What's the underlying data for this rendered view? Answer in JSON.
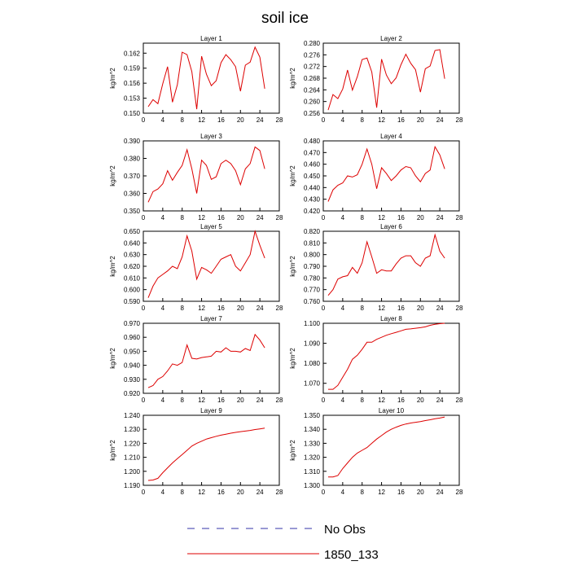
{
  "title": "soil ice",
  "chart_data": [
    {
      "type": "line",
      "title": "Layer 1",
      "ylabel": "kg/m^2",
      "xlim": [
        0,
        28
      ],
      "ylim": [
        0.15,
        0.164
      ],
      "xticks": [
        0,
        4,
        8,
        12,
        16,
        20,
        24,
        28
      ],
      "yticks": [
        "0.150",
        "0.153",
        "0.156",
        "0.159",
        "0.162"
      ],
      "series": [
        {
          "name": "1850_133",
          "x": [
            1,
            2,
            3,
            4,
            5,
            6,
            7,
            8,
            9,
            10,
            11,
            12,
            13,
            14,
            15,
            16,
            17,
            18,
            19,
            20,
            21,
            22,
            23,
            24,
            25
          ],
          "values": [
            0.1513,
            0.1527,
            0.1519,
            0.1559,
            0.1593,
            0.1522,
            0.1557,
            0.1622,
            0.1617,
            0.1583,
            0.1508,
            0.1614,
            0.1578,
            0.1555,
            0.1565,
            0.1601,
            0.1617,
            0.1607,
            0.1593,
            0.1544,
            0.1596,
            0.1602,
            0.1632,
            0.1612,
            0.1549
          ]
        }
      ]
    },
    {
      "type": "line",
      "title": "Layer 2",
      "ylabel": "kg/m^2",
      "xlim": [
        0,
        28
      ],
      "ylim": [
        0.256,
        0.28
      ],
      "xticks": [
        0,
        4,
        8,
        12,
        16,
        20,
        24,
        28
      ],
      "yticks": [
        "0.256",
        "0.260",
        "0.264",
        "0.268",
        "0.272",
        "0.276",
        "0.280"
      ],
      "series": [
        {
          "name": "1850_133",
          "x": [
            1,
            2,
            3,
            4,
            5,
            6,
            7,
            8,
            9,
            10,
            11,
            12,
            13,
            14,
            15,
            16,
            17,
            18,
            19,
            20,
            21,
            22,
            23,
            24,
            25
          ],
          "values": [
            0.2571,
            0.2624,
            0.261,
            0.2643,
            0.2708,
            0.2639,
            0.2685,
            0.2744,
            0.2749,
            0.2701,
            0.2579,
            0.2745,
            0.2691,
            0.2661,
            0.2681,
            0.2726,
            0.2762,
            0.2731,
            0.2709,
            0.2632,
            0.2712,
            0.2722,
            0.2775,
            0.2778,
            0.2678
          ]
        }
      ]
    },
    {
      "type": "line",
      "title": "Layer 3",
      "ylabel": "kg/m^2",
      "xlim": [
        0,
        28
      ],
      "ylim": [
        0.35,
        0.39
      ],
      "xticks": [
        0,
        4,
        8,
        12,
        16,
        20,
        24,
        28
      ],
      "yticks": [
        "0.350",
        "0.360",
        "0.370",
        "0.380",
        "0.390"
      ],
      "series": [
        {
          "name": "1850_133",
          "x": [
            1,
            2,
            3,
            4,
            5,
            6,
            7,
            8,
            9,
            10,
            11,
            12,
            13,
            14,
            15,
            16,
            17,
            18,
            19,
            20,
            21,
            22,
            23,
            24,
            25
          ],
          "values": [
            0.355,
            0.361,
            0.3625,
            0.3655,
            0.373,
            0.3675,
            0.372,
            0.376,
            0.385,
            0.374,
            0.36,
            0.379,
            0.376,
            0.368,
            0.3695,
            0.377,
            0.379,
            0.377,
            0.373,
            0.365,
            0.374,
            0.377,
            0.3865,
            0.3845,
            0.374
          ]
        }
      ]
    },
    {
      "type": "line",
      "title": "Layer 4",
      "ylabel": "kg/m^2",
      "xlim": [
        0,
        28
      ],
      "ylim": [
        0.42,
        0.48
      ],
      "xticks": [
        0,
        4,
        8,
        12,
        16,
        20,
        24,
        28
      ],
      "yticks": [
        "0.420",
        "0.430",
        "0.440",
        "0.450",
        "0.460",
        "0.470",
        "0.480"
      ],
      "series": [
        {
          "name": "1850_133",
          "x": [
            1,
            2,
            3,
            4,
            5,
            6,
            7,
            8,
            9,
            10,
            11,
            12,
            13,
            14,
            15,
            16,
            17,
            18,
            19,
            20,
            21,
            22,
            23,
            24,
            25
          ],
          "values": [
            0.428,
            0.438,
            0.442,
            0.444,
            0.45,
            0.449,
            0.451,
            0.46,
            0.473,
            0.46,
            0.439,
            0.457,
            0.452,
            0.446,
            0.45,
            0.455,
            0.458,
            0.457,
            0.45,
            0.445,
            0.452,
            0.455,
            0.475,
            0.468,
            0.456
          ]
        }
      ]
    },
    {
      "type": "line",
      "title": "Layer 5",
      "ylabel": "kg/m^2",
      "xlim": [
        0,
        28
      ],
      "ylim": [
        0.59,
        0.65
      ],
      "xticks": [
        0,
        4,
        8,
        12,
        16,
        20,
        24,
        28
      ],
      "yticks": [
        "0.590",
        "0.600",
        "0.610",
        "0.620",
        "0.630",
        "0.640",
        "0.650"
      ],
      "series": [
        {
          "name": "1850_133",
          "x": [
            1,
            2,
            3,
            4,
            5,
            6,
            7,
            8,
            9,
            10,
            11,
            12,
            13,
            14,
            15,
            16,
            17,
            18,
            19,
            20,
            21,
            22,
            23,
            24,
            25
          ],
          "values": [
            0.593,
            0.603,
            0.61,
            0.613,
            0.616,
            0.62,
            0.618,
            0.628,
            0.646,
            0.633,
            0.609,
            0.619,
            0.617,
            0.614,
            0.62,
            0.626,
            0.628,
            0.63,
            0.62,
            0.616,
            0.623,
            0.63,
            0.65,
            0.638,
            0.627
          ]
        }
      ]
    },
    {
      "type": "line",
      "title": "Layer 6",
      "ylabel": "kg/m^2",
      "xlim": [
        0,
        28
      ],
      "ylim": [
        0.76,
        0.82
      ],
      "xticks": [
        0,
        4,
        8,
        12,
        16,
        20,
        24,
        28
      ],
      "yticks": [
        "0.760",
        "0.770",
        "0.780",
        "0.790",
        "0.800",
        "0.810",
        "0.820"
      ],
      "series": [
        {
          "name": "1850_133",
          "x": [
            1,
            2,
            3,
            4,
            5,
            6,
            7,
            8,
            9,
            10,
            11,
            12,
            13,
            14,
            15,
            16,
            17,
            18,
            19,
            20,
            21,
            22,
            23,
            24,
            25
          ],
          "values": [
            0.765,
            0.77,
            0.779,
            0.781,
            0.782,
            0.789,
            0.784,
            0.793,
            0.811,
            0.798,
            0.784,
            0.787,
            0.786,
            0.786,
            0.792,
            0.797,
            0.799,
            0.799,
            0.793,
            0.79,
            0.797,
            0.799,
            0.817,
            0.803,
            0.797
          ]
        }
      ]
    },
    {
      "type": "line",
      "title": "Layer 7",
      "ylabel": "kg/m^2",
      "xlim": [
        0,
        28
      ],
      "ylim": [
        0.92,
        0.97
      ],
      "xticks": [
        0,
        4,
        8,
        12,
        16,
        20,
        24,
        28
      ],
      "yticks": [
        "0.920",
        "0.930",
        "0.940",
        "0.950",
        "0.960",
        "0.970"
      ],
      "series": [
        {
          "name": "1850_133",
          "x": [
            1,
            2,
            3,
            4,
            5,
            6,
            7,
            8,
            9,
            10,
            11,
            12,
            13,
            14,
            15,
            16,
            17,
            18,
            19,
            20,
            21,
            22,
            23,
            24,
            25
          ],
          "values": [
            0.924,
            0.9255,
            0.93,
            0.932,
            0.936,
            0.941,
            0.94,
            0.942,
            0.9545,
            0.945,
            0.9445,
            0.9455,
            0.946,
            0.9465,
            0.95,
            0.9495,
            0.9525,
            0.95,
            0.95,
            0.9495,
            0.952,
            0.9505,
            0.962,
            0.958,
            0.9525
          ]
        }
      ]
    },
    {
      "type": "line",
      "title": "Layer 8",
      "ylabel": "kg/m^2",
      "xlim": [
        0,
        28
      ],
      "ylim": [
        1.065,
        1.1
      ],
      "xticks": [
        0,
        4,
        8,
        12,
        16,
        20,
        24,
        28
      ],
      "yticks": [
        "1.070",
        "1.080",
        "1.090",
        "1.100"
      ],
      "series": [
        {
          "name": "1850_133",
          "x": [
            1,
            2,
            3,
            4,
            5,
            6,
            7,
            8,
            9,
            10,
            11,
            12,
            13,
            14,
            15,
            16,
            17,
            18,
            19,
            20,
            21,
            22,
            23,
            24,
            25
          ],
          "values": [
            1.067,
            1.067,
            1.069,
            1.073,
            1.077,
            1.082,
            1.084,
            1.087,
            1.0905,
            1.0905,
            1.092,
            1.093,
            1.094,
            1.0948,
            1.0955,
            1.0962,
            1.097,
            1.0972,
            1.0975,
            1.0978,
            1.0982,
            1.099,
            1.0995,
            1.0998,
            1.1
          ]
        }
      ]
    },
    {
      "type": "line",
      "title": "Layer 9",
      "ylabel": "kg/m^2",
      "xlim": [
        0,
        28
      ],
      "ylim": [
        1.19,
        1.24
      ],
      "xticks": [
        0,
        4,
        8,
        12,
        16,
        20,
        24,
        28
      ],
      "yticks": [
        "1.190",
        "1.200",
        "1.210",
        "1.220",
        "1.230",
        "1.240"
      ],
      "series": [
        {
          "name": "1850_133",
          "x": [
            1,
            2,
            3,
            4,
            5,
            6,
            7,
            8,
            9,
            10,
            11,
            12,
            13,
            14,
            15,
            16,
            17,
            18,
            19,
            20,
            21,
            22,
            23,
            24,
            25
          ],
          "values": [
            1.1935,
            1.1938,
            1.195,
            1.199,
            1.2025,
            1.206,
            1.209,
            1.212,
            1.215,
            1.218,
            1.22,
            1.2215,
            1.223,
            1.224,
            1.225,
            1.2258,
            1.2265,
            1.2272,
            1.2278,
            1.2283,
            1.2287,
            1.2292,
            1.2298,
            1.2303,
            1.2308
          ]
        }
      ]
    },
    {
      "type": "line",
      "title": "Layer 10",
      "ylabel": "kg/m^2",
      "xlim": [
        0,
        28
      ],
      "ylim": [
        1.3,
        1.35
      ],
      "xticks": [
        0,
        4,
        8,
        12,
        16,
        20,
        24,
        28
      ],
      "yticks": [
        "1.300",
        "1.310",
        "1.320",
        "1.330",
        "1.340",
        "1.350"
      ],
      "series": [
        {
          "name": "1850_133",
          "x": [
            1,
            2,
            3,
            4,
            5,
            6,
            7,
            8,
            9,
            10,
            11,
            12,
            13,
            14,
            15,
            16,
            17,
            18,
            19,
            20,
            21,
            22,
            23,
            24,
            25
          ],
          "values": [
            1.306,
            1.306,
            1.307,
            1.312,
            1.316,
            1.32,
            1.323,
            1.325,
            1.327,
            1.33,
            1.333,
            1.3355,
            1.338,
            1.34,
            1.3415,
            1.3428,
            1.3438,
            1.3445,
            1.345,
            1.3455,
            1.3462,
            1.3468,
            1.3475,
            1.348,
            1.3488
          ]
        }
      ]
    }
  ],
  "legend": [
    {
      "label": "No Obs",
      "color": "#3333aa",
      "style": "dashed"
    },
    {
      "label": "1850_133",
      "color": "#dd0000",
      "style": "solid"
    }
  ],
  "colors": {
    "series": "#dd0000",
    "axis": "#000000"
  }
}
